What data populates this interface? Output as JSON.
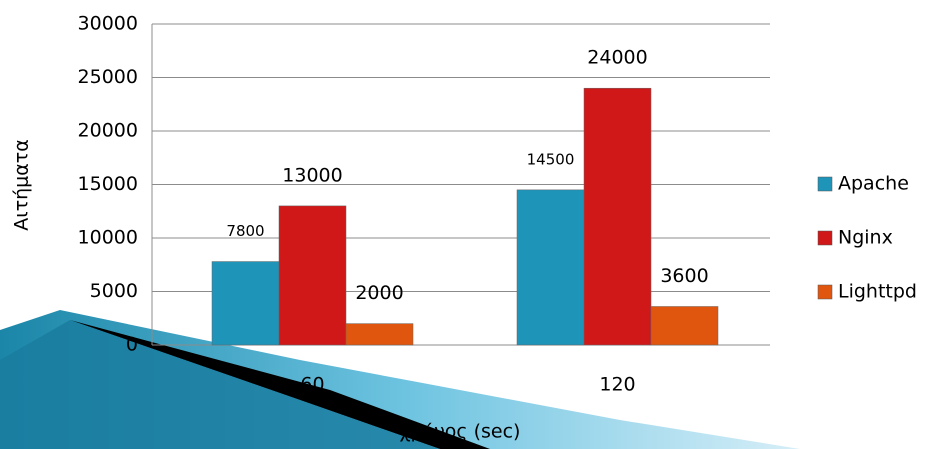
{
  "chart_data": {
    "type": "bar",
    "x_label": "χρόνος (sec)",
    "y_label": "Αιτήματα",
    "categories": [
      "60",
      "120"
    ],
    "series": [
      {
        "name": "Apache",
        "color": "#1e94b8",
        "values": [
          7800,
          14500
        ]
      },
      {
        "name": "Nginx",
        "color": "#d01818",
        "values": [
          13000,
          24000
        ]
      },
      {
        "name": "Lighttpd",
        "color": "#e0560e",
        "values": [
          2000,
          3600
        ]
      }
    ],
    "ylim": [
      0,
      30000
    ],
    "yticks": [
      0,
      5000,
      10000,
      15000,
      20000,
      25000,
      30000
    ],
    "grid": true,
    "legend": "right"
  }
}
